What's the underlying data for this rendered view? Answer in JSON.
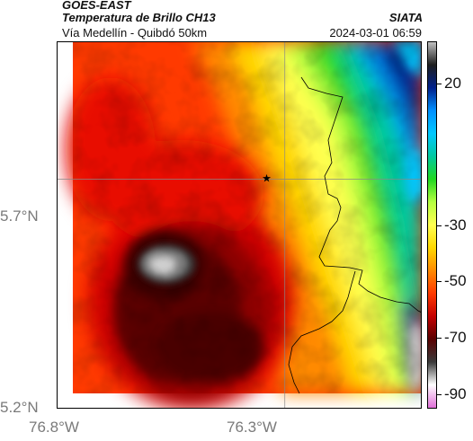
{
  "header": {
    "satellite": "GOES-EAST",
    "product": "Temperatura de Brillo CH13",
    "source": "SIATA",
    "route": "Vía Medellín - Quibdó 50km",
    "datetime": "2024-03-01 06:59"
  },
  "axes": {
    "x_ticks": [
      {
        "label": "76.8°W",
        "value": -76.8
      },
      {
        "label": "76.3°W",
        "value": -76.3
      }
    ],
    "y_ticks": [
      {
        "label": "5.7°N",
        "value": 5.7
      },
      {
        "label": "5.2°N",
        "value": 5.2
      }
    ],
    "lon_range": [
      -76.8,
      -76.0
    ],
    "lat_range": [
      5.2,
      6.0
    ],
    "gridlines": true
  },
  "colorbar": {
    "ticks": [
      {
        "label": "20",
        "value": 20
      },
      {
        "label": "-30",
        "value": -30
      },
      {
        "label": "-50",
        "value": -50
      },
      {
        "label": "-70",
        "value": -70
      },
      {
        "label": "-90",
        "value": -90
      }
    ],
    "range": [
      -95,
      35
    ],
    "colors": [
      "#e070d8",
      "#ffffff",
      "#3a3a3a",
      "#5a0000",
      "#c40000",
      "#ff3a00",
      "#ff8a00",
      "#ffd800",
      "#ffff50",
      "#b4ff40",
      "#20d820",
      "#00c8a0",
      "#00c8ff",
      "#0090ff",
      "#00208c",
      "#1e1e1e",
      "#bfbfbf"
    ]
  },
  "map": {
    "marker": {
      "lon": -76.34,
      "lat": 5.7
    },
    "colors": {
      "hot": "#ff3a00",
      "cold_core": "#5a0000",
      "coldest": "#c8c8c8"
    }
  }
}
